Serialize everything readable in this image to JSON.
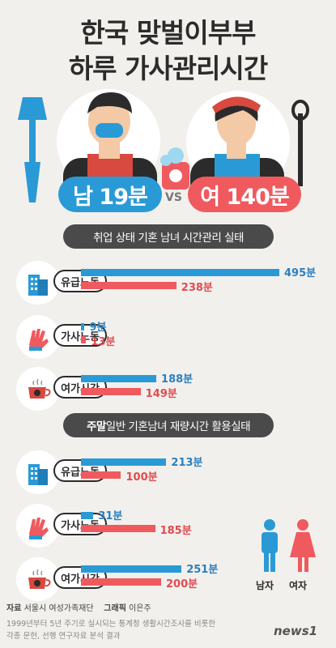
{
  "header": {
    "title_line1": "한국 맞벌이부부",
    "title_line2": "하루 가사관리시간",
    "male_pill": "남 19분",
    "female_pill": "여 140분",
    "vs": "VS"
  },
  "colors": {
    "male": "#2a9ad6",
    "female": "#ef5a5f",
    "banner": "#4a4a4a"
  },
  "sections": [
    {
      "banner_pre": "",
      "banner_bold": "",
      "banner_text": "취업 상태 기혼 남녀 시간관리 실태",
      "rows": [
        {
          "label": "유급노동",
          "icon": "building-icon",
          "male": 495,
          "female": 238,
          "male_label": "495분",
          "female_label": "238분"
        },
        {
          "label": "가사노동",
          "icon": "glove-icon",
          "male": 9,
          "female": 13,
          "male_label": "9분",
          "female_label": "13분"
        },
        {
          "label": "여가시간",
          "icon": "cup-icon",
          "male": 188,
          "female": 149,
          "male_label": "188분",
          "female_label": "149분"
        }
      ]
    },
    {
      "banner_bold": "주말",
      "banner_text": " 일반 기혼남녀 재량시간 활용실태",
      "rows": [
        {
          "label": "유급노동",
          "icon": "building-icon",
          "male": 213,
          "female": 100,
          "male_label": "213분",
          "female_label": "100분"
        },
        {
          "label": "가사노동",
          "icon": "glove-icon",
          "male": 31,
          "female": 185,
          "male_label": "31분",
          "female_label": "185분"
        },
        {
          "label": "여가시간",
          "icon": "cup-icon",
          "male": 251,
          "female": 200,
          "male_label": "251분",
          "female_label": "200분"
        }
      ]
    }
  ],
  "legend": {
    "male": "남자",
    "female": "여자"
  },
  "footer": {
    "source_label": "자료",
    "source": "서울시 여성가족재단",
    "graphic_label": "그래픽",
    "graphic": "이은주",
    "note1": "1999년부터 5년 주기로 실시되는 통계청 생활시간조사를 비롯한",
    "note2": "각종 문헌, 선행 연구자료 분석 결과",
    "logo": "news1"
  },
  "chart_data": [
    {
      "type": "bar",
      "title": "취업 상태 기혼 남녀 시간관리 실태",
      "categories": [
        "유급노동",
        "가사노동",
        "여가시간"
      ],
      "series": [
        {
          "name": "남자",
          "values": [
            495,
            9,
            188
          ]
        },
        {
          "name": "여자",
          "values": [
            238,
            13,
            149
          ]
        }
      ]
    },
    {
      "type": "bar",
      "title": "주말 일반 기혼남녀 재량시간 활용실태",
      "categories": [
        "유급노동",
        "가사노동",
        "여가시간"
      ],
      "series": [
        {
          "name": "남자",
          "values": [
            213,
            31,
            251
          ]
        },
        {
          "name": "여자",
          "values": [
            100,
            185,
            200
          ]
        }
      ]
    }
  ]
}
